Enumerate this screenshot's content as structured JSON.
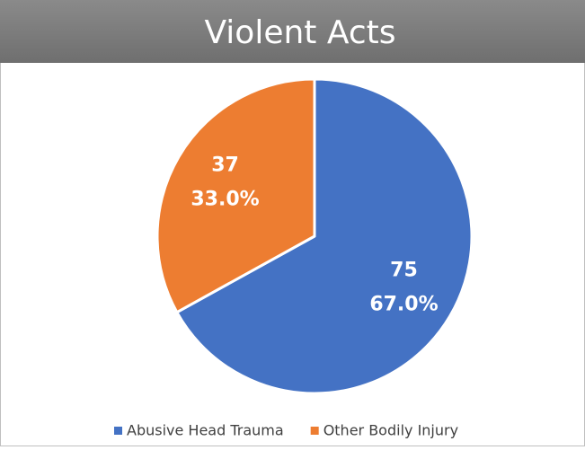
{
  "chart_data": {
    "type": "pie",
    "title": "Violent Acts",
    "categories": [
      "Abusive Head Trauma",
      "Other Bodily Injury"
    ],
    "values": [
      75,
      37
    ],
    "percents": [
      67.0,
      33.0
    ],
    "percent_labels": [
      "67.0%",
      "33.0%"
    ],
    "colors": [
      "#4472c4",
      "#ed7d31"
    ],
    "legend": "bottom"
  }
}
